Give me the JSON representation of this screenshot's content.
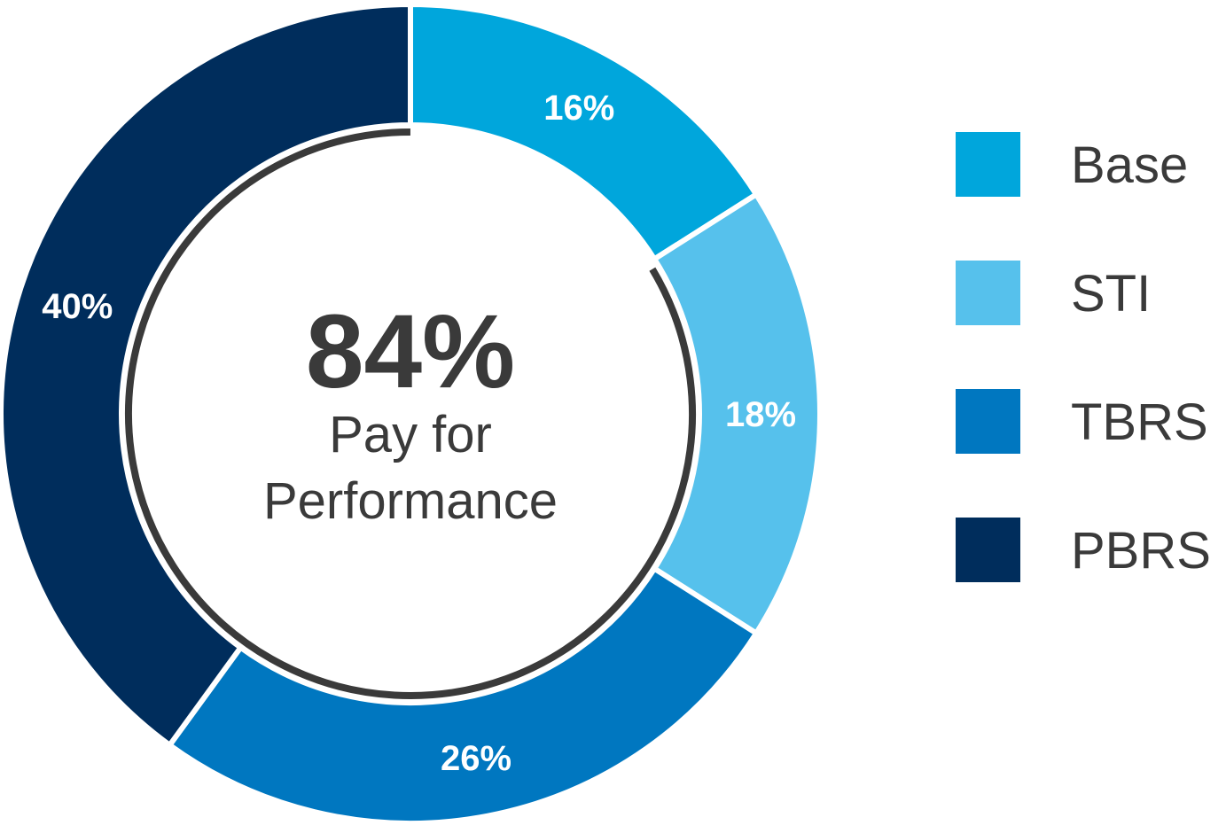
{
  "chart_data": {
    "type": "pie",
    "donut": true,
    "start_angle_deg": 0,
    "direction": "clockwise",
    "categories": [
      "Base",
      "STI",
      "TBRS",
      "PBRS"
    ],
    "values": [
      16,
      18,
      26,
      40
    ],
    "value_labels": [
      "16%",
      "18%",
      "26%",
      "40%"
    ],
    "colors": [
      "#00a6dc",
      "#56c1ec",
      "#0077c0",
      "#002d5c"
    ],
    "legend_position": "right",
    "center_text": {
      "value": "84%",
      "line1": "Pay for",
      "line2": "Performance"
    },
    "highlight_arc": {
      "color": "#3a3a3a",
      "covers": [
        "STI",
        "TBRS",
        "PBRS"
      ],
      "value": 84
    }
  }
}
